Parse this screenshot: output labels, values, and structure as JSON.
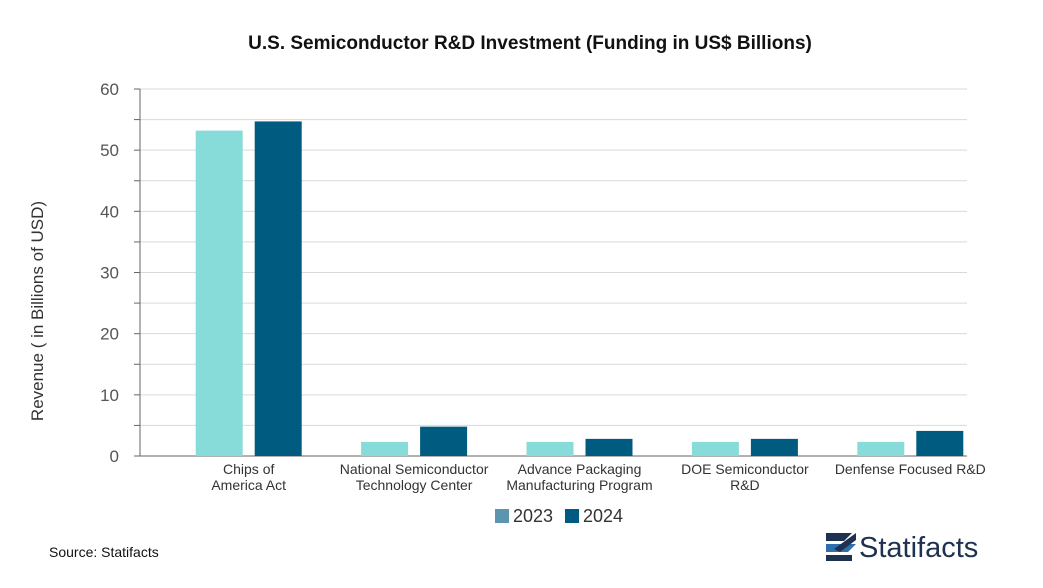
{
  "chart_data": {
    "type": "bar",
    "title": "U.S. Semiconductor R&D Investment (Funding in US$ Billions)",
    "ylabel": "Revenue ( in Billions of USD)",
    "xlabel": "",
    "ylim": [
      0,
      60
    ],
    "yticks": [
      0,
      10,
      20,
      30,
      40,
      50,
      60
    ],
    "grid": true,
    "legend_position": "bottom",
    "categories": [
      [
        "Chips of",
        "America Act"
      ],
      [
        "National Semiconductor",
        "Technology Center"
      ],
      [
        "Advance Packaging",
        "Manufacturing Program"
      ],
      [
        "DOE Semiconductor",
        "R&D"
      ],
      [
        "Denfense Focused R&D"
      ]
    ],
    "series": [
      {
        "name": "2023",
        "color": "#87dbd9",
        "values": [
          53.2,
          2.3,
          2.3,
          2.3,
          2.3
        ]
      },
      {
        "name": "2024",
        "color": "#005b80",
        "values": [
          54.7,
          4.8,
          2.8,
          2.8,
          4.1
        ]
      }
    ],
    "legend_swatch_color_2023": "#5b95b0"
  },
  "footer": {
    "source": "Source: Statifacts",
    "brand": "Statifacts",
    "brand_icon": "statifacts-logo-icon"
  }
}
